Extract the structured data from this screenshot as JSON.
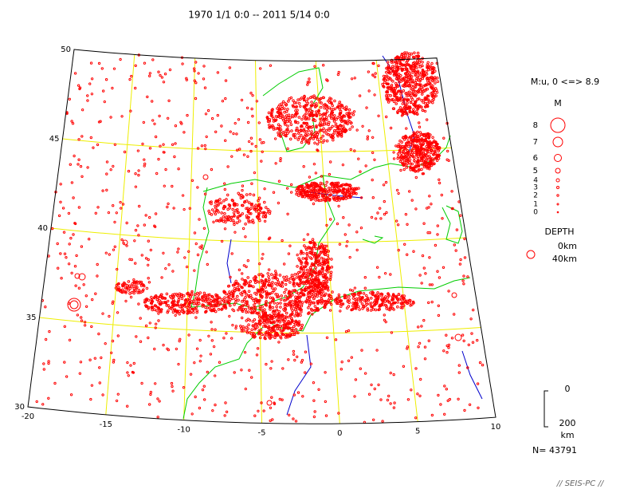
{
  "title": "1970 1/1 0:0 -- 2011 5/14 0:0",
  "latitudes": [
    50,
    45,
    40,
    35,
    30
  ],
  "longitudes": [
    -20,
    -15,
    -10,
    -5,
    0,
    5,
    10
  ],
  "legend": {
    "header": "M:u, 0 <=> 8.9",
    "m_title": "M",
    "magnitudes": [
      "8",
      "7",
      "6",
      "5",
      "4",
      "3",
      "2",
      "1",
      "0"
    ],
    "depth_title": "DEPTH",
    "depth_labels": [
      "0km",
      "40km"
    ]
  },
  "depth_scale": [
    "0",
    "200",
    "km"
  ],
  "count": "N= 43791",
  "footer": "// SEIS-PC //"
}
